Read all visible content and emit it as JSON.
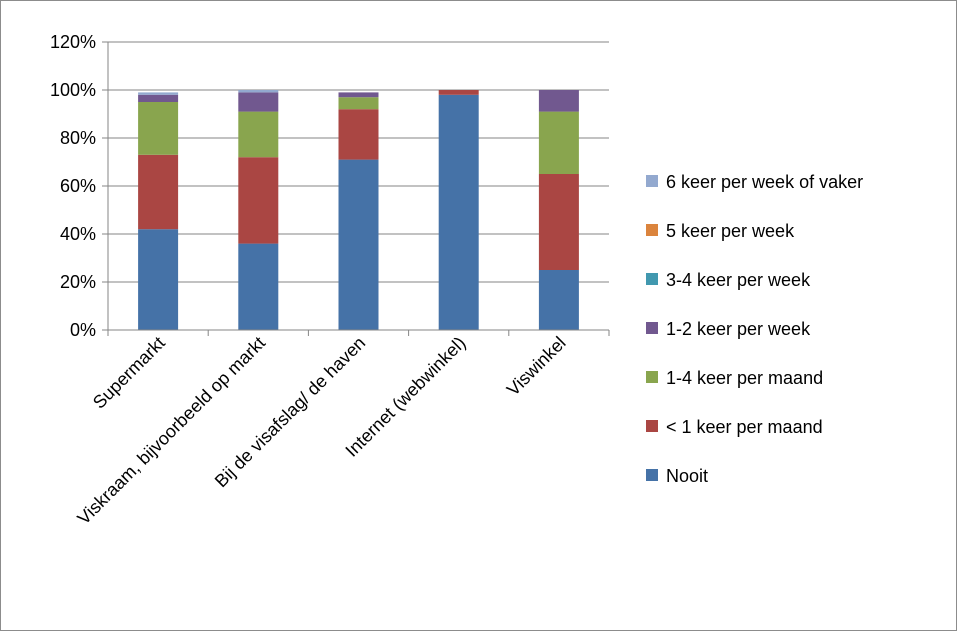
{
  "chart_data": {
    "type": "bar",
    "stacked": true,
    "categories": [
      "Supermarkt",
      "Viskraam, bijvoorbeeld op markt",
      "Bij de visafslag/ de haven",
      "Internet (webwinkel)",
      "Viswinkel"
    ],
    "series": [
      {
        "name": "Nooit",
        "color": "#4572A7",
        "values": [
          42,
          36,
          71,
          98,
          25
        ]
      },
      {
        "name": "< 1 keer per maand",
        "color": "#AA4643",
        "values": [
          31,
          36,
          21,
          2,
          40
        ]
      },
      {
        "name": "1-4 keer per maand",
        "color": "#89A54E",
        "values": [
          22,
          19,
          5,
          0,
          26
        ]
      },
      {
        "name": "1-2 keer per week",
        "color": "#71588F",
        "values": [
          3,
          8,
          2,
          0,
          9
        ]
      },
      {
        "name": "3-4 keer per week",
        "color": "#4198AF",
        "values": [
          0,
          0,
          0,
          0,
          0
        ]
      },
      {
        "name": "5 keer per week",
        "color": "#DB843D",
        "values": [
          0,
          0,
          0,
          0,
          0
        ]
      },
      {
        "name": "6 keer per week of vaker",
        "color": "#93A9CF",
        "values": [
          1,
          1,
          0,
          0,
          0
        ]
      }
    ],
    "y_ticks": [
      "0%",
      "20%",
      "40%",
      "60%",
      "80%",
      "100%",
      "120%"
    ],
    "ylim": [
      0,
      120
    ],
    "grid": true,
    "legend_position": "right"
  }
}
